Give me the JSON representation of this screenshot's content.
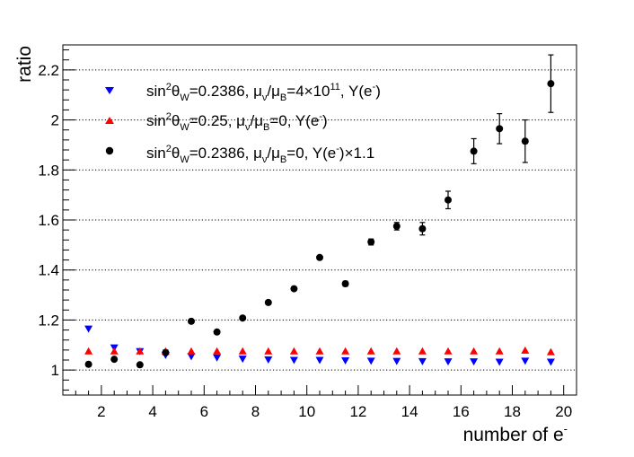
{
  "chart_data": {
    "type": "scatter",
    "xlabel": "number of e",
    "xlabel_sup": "-",
    "ylabel": "ratio",
    "xlim": [
      0.5,
      20.5
    ],
    "ylim": [
      0.9,
      2.3
    ],
    "x_ticks": [
      2,
      4,
      6,
      8,
      10,
      12,
      14,
      16,
      18,
      20
    ],
    "y_ticks": [
      1,
      1.2,
      1.4,
      1.6,
      1.8,
      2,
      2.2
    ],
    "y_tick_labels": [
      "1",
      "1.2",
      "1.4",
      "1.6",
      "1.8",
      "2",
      "2.2"
    ],
    "gridlines": "horizontal-dotted",
    "legend_position": "top-left",
    "series": [
      {
        "name": "sin2thetaW=0.2386, mu_nu/mu_B=4x10^11, Y(e-)",
        "marker": "triangle-down",
        "color": "#0000ff",
        "x": [
          1.5,
          2.5,
          3.5,
          4.5,
          5.5,
          6.5,
          7.5,
          8.5,
          9.5,
          10.5,
          11.5,
          12.5,
          13.5,
          14.5,
          15.5,
          16.5,
          17.5,
          18.5,
          19.5
        ],
        "y": [
          1.165,
          1.09,
          1.075,
          1.06,
          1.055,
          1.05,
          1.045,
          1.042,
          1.04,
          1.04,
          1.038,
          1.037,
          1.036,
          1.035,
          1.034,
          1.034,
          1.033,
          1.037,
          1.033
        ],
        "err": [
          0,
          0,
          0,
          0,
          0,
          0,
          0,
          0,
          0,
          0,
          0,
          0,
          0,
          0,
          0,
          0,
          0,
          0,
          0
        ]
      },
      {
        "name": "sin2thetaW=0.25, mu_nu/mu_B=0, Y(e-)",
        "marker": "triangle-up",
        "color": "#ff0000",
        "x": [
          1.5,
          2.5,
          3.5,
          4.5,
          5.5,
          6.5,
          7.5,
          8.5,
          9.5,
          10.5,
          11.5,
          12.5,
          13.5,
          14.5,
          15.5,
          16.5,
          17.5,
          18.5,
          19.5
        ],
        "y": [
          1.075,
          1.075,
          1.075,
          1.075,
          1.075,
          1.075,
          1.075,
          1.075,
          1.075,
          1.075,
          1.075,
          1.075,
          1.075,
          1.075,
          1.075,
          1.075,
          1.075,
          1.078,
          1.072
        ],
        "err": [
          0,
          0,
          0,
          0,
          0,
          0,
          0,
          0,
          0,
          0,
          0,
          0,
          0,
          0,
          0,
          0,
          0,
          0,
          0
        ]
      },
      {
        "name": "sin2thetaW=0.2386, mu_nu/mu_B=0, Y(e-)x1.1",
        "marker": "circle",
        "color": "#000000",
        "x": [
          1.5,
          2.5,
          3.5,
          4.5,
          5.5,
          6.5,
          7.5,
          8.5,
          9.5,
          10.5,
          11.5,
          12.5,
          13.5,
          14.5,
          15.5,
          16.5,
          17.5,
          18.5,
          19.5
        ],
        "y": [
          1.023,
          1.043,
          1.021,
          1.07,
          1.195,
          1.152,
          1.208,
          1.27,
          1.325,
          1.45,
          1.345,
          1.512,
          1.575,
          1.565,
          1.68,
          1.875,
          1.965,
          1.915,
          2.145
        ],
        "err": [
          0,
          0,
          0,
          0.01,
          0,
          0,
          0,
          0,
          0.005,
          0,
          0.01,
          0.012,
          0.015,
          0.025,
          0.035,
          0.05,
          0.06,
          0.085,
          0.115
        ]
      }
    ]
  },
  "legend": [
    {
      "marker": "triangle-down",
      "color": "#0000ff",
      "text": "sin2θW=0.2386, μν/μB=4×1011, Y(e-)"
    },
    {
      "marker": "triangle-up",
      "color": "#ff0000",
      "text": "sin2θW=0.25, μν/μB=0, Y(e-)"
    },
    {
      "marker": "circle",
      "color": "#000000",
      "text": "sin2θW=0.2386, μν/μB=0, Y(e-)×1.1"
    }
  ]
}
